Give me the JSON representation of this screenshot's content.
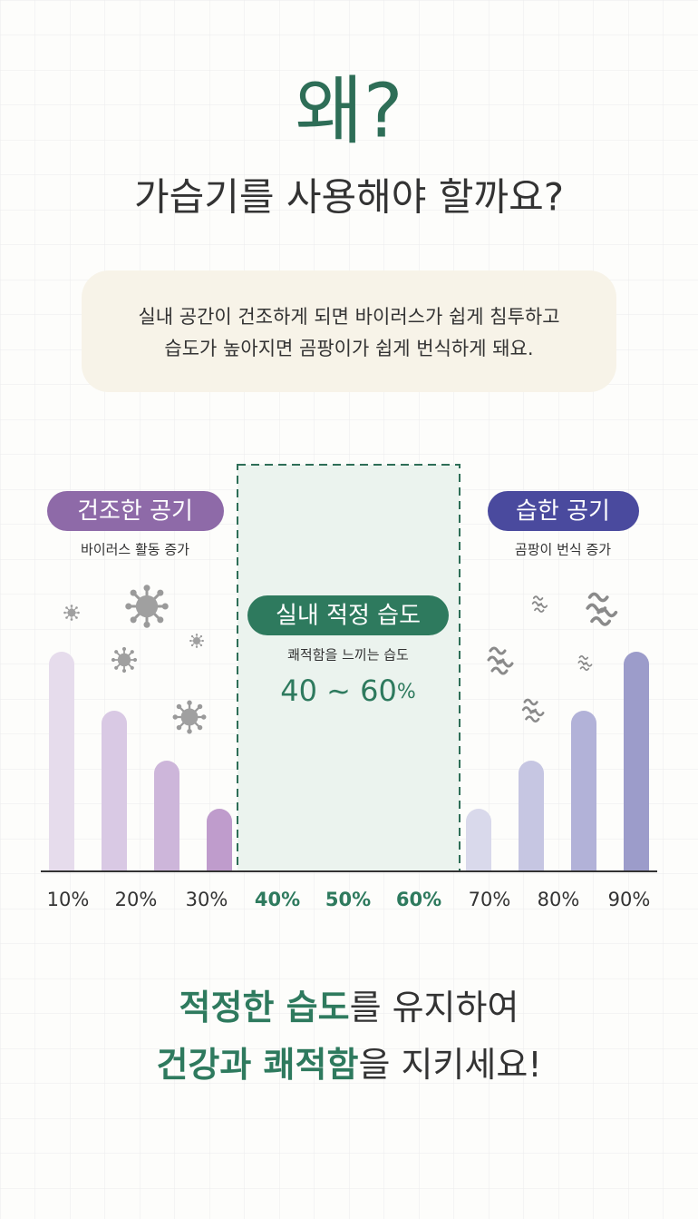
{
  "heading": {
    "why": "왜?",
    "question": "가습기를 사용해야 할까요?"
  },
  "intro": [
    "실내 공간이 건조하게 되면 바이러스가 쉽게 침투하고",
    "습도가 높아지면 곰팡이가 쉽게 번식하게 돼요."
  ],
  "dry": {
    "label": "건조한 공기",
    "note": "바이러스 활동 증가"
  },
  "humid": {
    "label": "습한 공기",
    "note": "곰팡이 번식 증가"
  },
  "optimal": {
    "label": "실내 적정 습도",
    "note": "쾌적함을 느끼는 습도",
    "range": "40 ~ 60",
    "unit": "%"
  },
  "scale": [
    "10%",
    "20%",
    "30%",
    "40%",
    "50%",
    "60%",
    "70%",
    "80%",
    "90%"
  ],
  "closing": [
    {
      "highlight": "적정한 습도",
      "rest": "를 유지하여"
    },
    {
      "highlight": "건강과 쾌적함",
      "rest": "을 지키세요!"
    }
  ]
}
